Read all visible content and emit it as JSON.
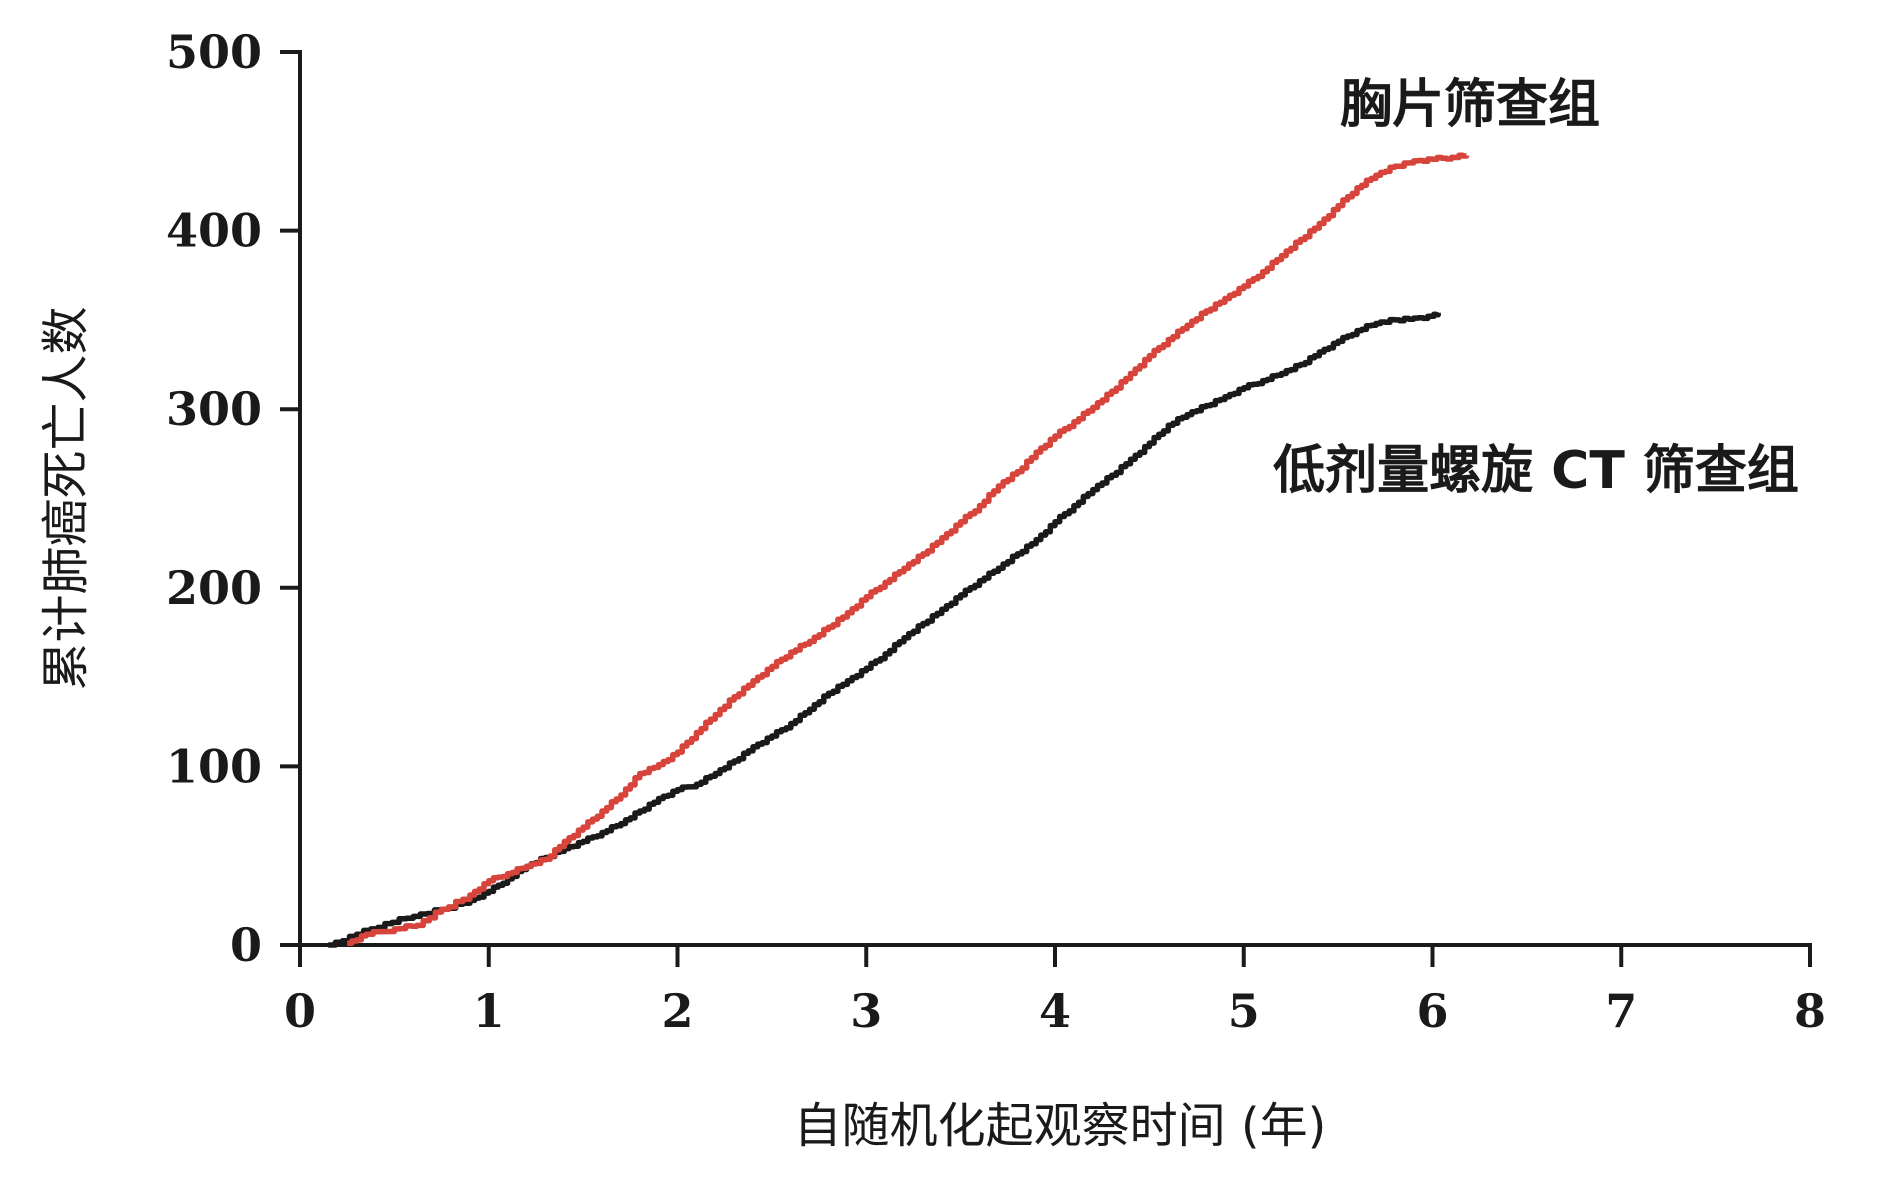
{
  "chart_data": {
    "type": "line",
    "title": "",
    "xlabel": "自随机化起观察时间 (年)",
    "ylabel": "累计肺癌死亡人数",
    "xlim": [
      0,
      8
    ],
    "ylim": [
      0,
      500
    ],
    "x_ticks": [
      "0",
      "1",
      "2",
      "3",
      "4",
      "5",
      "6",
      "7",
      "8"
    ],
    "y_ticks": [
      "0",
      "100",
      "200",
      "300",
      "400",
      "500"
    ],
    "grid": false,
    "colors": {
      "胸片筛查组": "#d6443b",
      "低剂量螺旋 CT 筛查组": "#1a1a1a"
    },
    "series": [
      {
        "name": "胸片筛查组",
        "x": [
          0.25,
          0.35,
          0.5,
          0.62,
          0.75,
          0.9,
          1.0,
          1.1,
          1.2,
          1.3,
          1.4,
          1.5,
          1.6,
          1.7,
          1.8,
          1.9,
          2.0,
          2.1,
          2.2,
          2.3,
          2.4,
          2.5,
          2.6,
          2.7,
          2.8,
          2.9,
          3.0,
          3.1,
          3.2,
          3.3,
          3.4,
          3.5,
          3.6,
          3.7,
          3.8,
          3.9,
          4.0,
          4.1,
          4.2,
          4.3,
          4.4,
          4.5,
          4.6,
          4.7,
          4.8,
          4.9,
          5.0,
          5.1,
          5.2,
          5.3,
          5.4,
          5.5,
          5.6,
          5.7,
          5.8,
          5.9,
          6.0,
          6.1,
          6.18
        ],
        "values": [
          1,
          6,
          9,
          11,
          20,
          28,
          36,
          40,
          44,
          48,
          58,
          66,
          75,
          84,
          96,
          101,
          108,
          119,
          129,
          139,
          148,
          156,
          164,
          170,
          178,
          186,
          195,
          203,
          211,
          219,
          228,
          237,
          246,
          257,
          265,
          276,
          285,
          293,
          301,
          310,
          320,
          330,
          339,
          347,
          355,
          362,
          369,
          377,
          386,
          395,
          404,
          414,
          424,
          431,
          436,
          439,
          440,
          441,
          442
        ]
      },
      {
        "name": "低剂量螺旋 CT 筛查组",
        "x": [
          0.15,
          0.3,
          0.45,
          0.6,
          0.75,
          0.9,
          1.0,
          1.1,
          1.2,
          1.3,
          1.4,
          1.5,
          1.6,
          1.7,
          1.8,
          1.9,
          2.0,
          2.1,
          2.2,
          2.3,
          2.4,
          2.5,
          2.6,
          2.7,
          2.8,
          2.9,
          3.0,
          3.1,
          3.2,
          3.3,
          3.4,
          3.5,
          3.6,
          3.7,
          3.8,
          3.9,
          4.0,
          4.1,
          4.2,
          4.3,
          4.4,
          4.5,
          4.6,
          4.7,
          4.8,
          4.9,
          5.0,
          5.1,
          5.2,
          5.3,
          5.4,
          5.5,
          5.6,
          5.7,
          5.8,
          5.9,
          6.0,
          6.03
        ],
        "values": [
          0,
          6,
          12,
          16,
          20,
          25,
          30,
          37,
          44,
          49,
          54,
          58,
          63,
          68,
          75,
          82,
          87,
          90,
          96,
          103,
          111,
          117,
          124,
          132,
          141,
          148,
          155,
          163,
          172,
          180,
          188,
          196,
          204,
          211,
          219,
          227,
          237,
          246,
          255,
          263,
          272,
          281,
          291,
          297,
          302,
          307,
          312,
          316,
          320,
          325,
          332,
          338,
          344,
          348,
          350,
          351,
          352,
          354
        ]
      }
    ],
    "annotations": [
      "胸片筛查组",
      "低剂量螺旋 CT 筛查组"
    ]
  }
}
